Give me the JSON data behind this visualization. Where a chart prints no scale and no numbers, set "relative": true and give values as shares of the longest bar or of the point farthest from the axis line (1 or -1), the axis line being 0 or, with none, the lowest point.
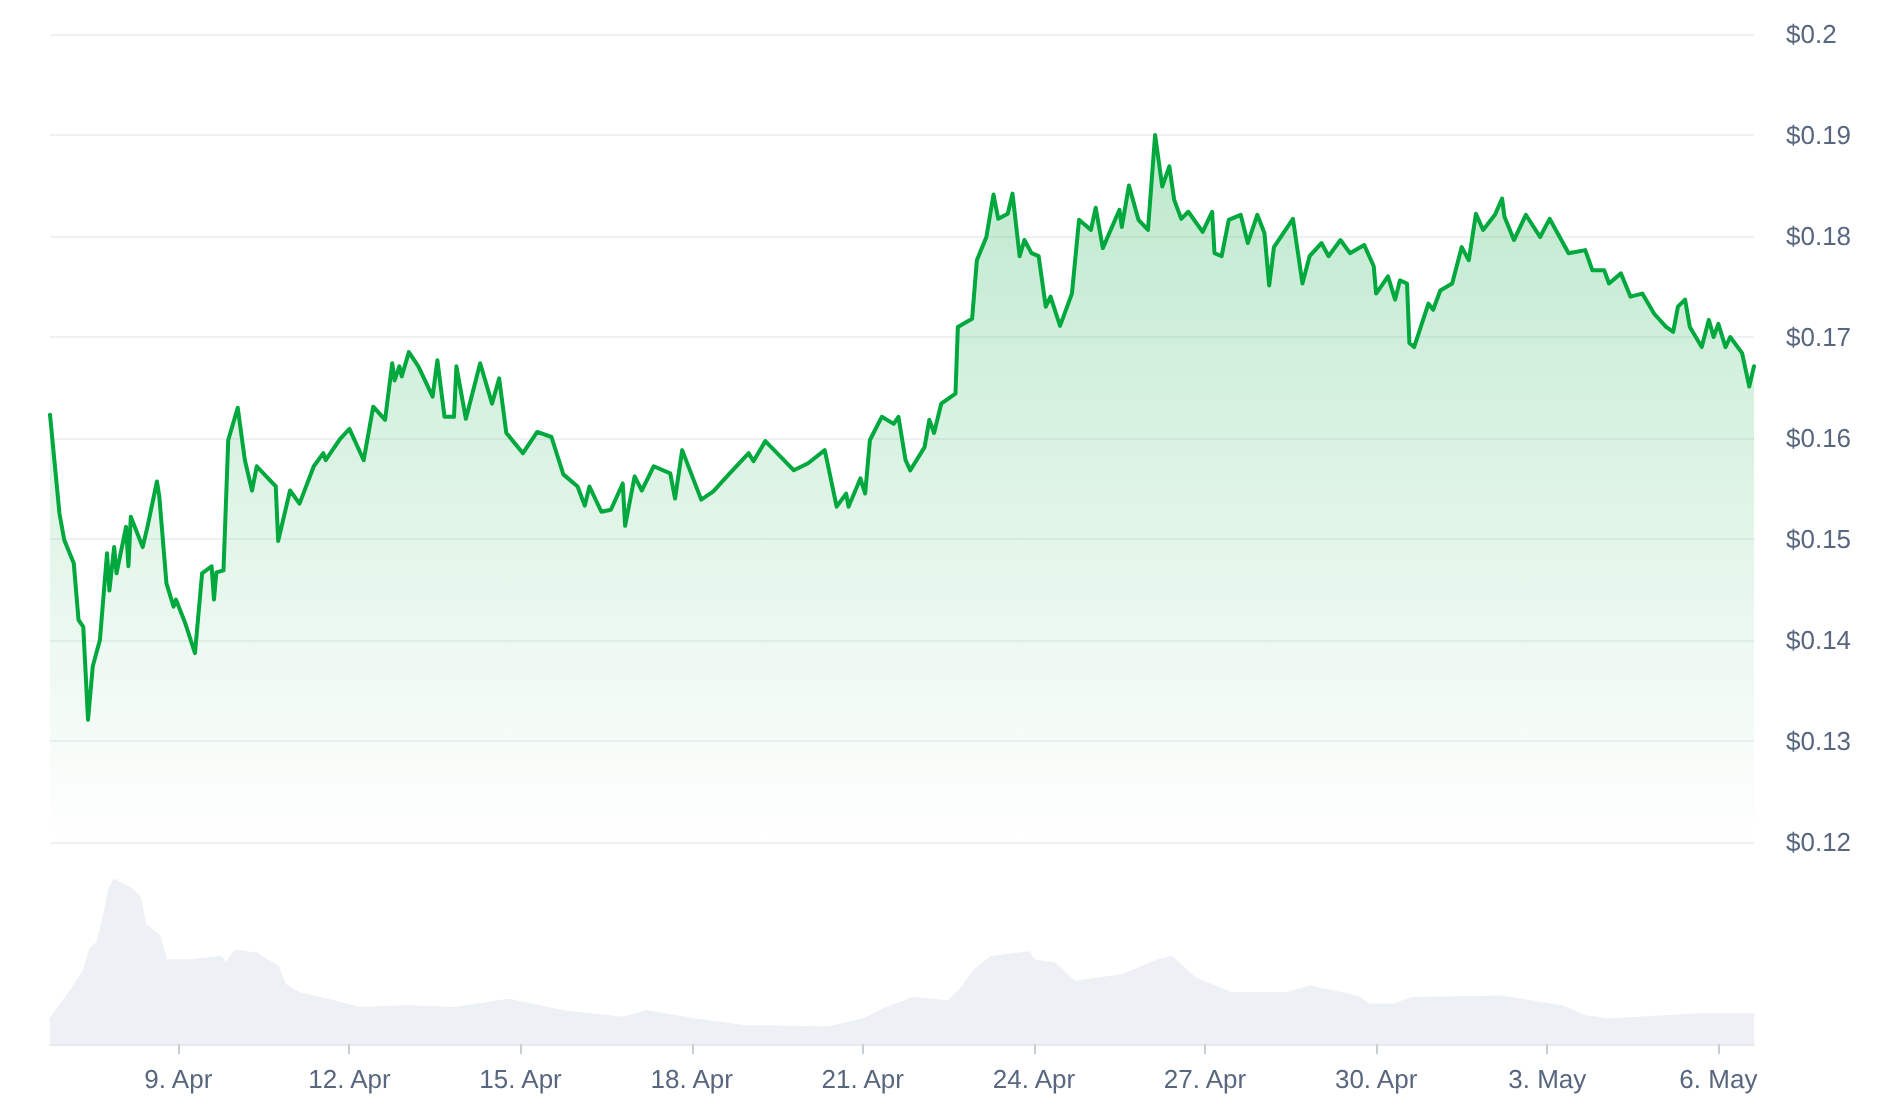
{
  "chart_data": [
    {
      "type": "area",
      "color": "#00a83e",
      "x": [
        "--04-06T18:00",
        "--04-06T22:00",
        "--04-07T00:00",
        "--04-07T04:00",
        "--04-07T06:00",
        "--04-07T08:00",
        "--04-07T10:00",
        "--04-07T12:00",
        "--04-07T15:00",
        "--04-07T18:00",
        "--04-07T19:00",
        "--04-07T21:00",
        "--04-07T22:00",
        "--04-08T02:00",
        "--04-08T03:00",
        "--04-08T04:00",
        "--04-08T09:00",
        "--04-08T11:00",
        "--04-08T15:00",
        "--04-08T16:00",
        "--04-08T19:00",
        "--04-08T22:00",
        "--04-08T23:00",
        "--04-09T03:00",
        "--04-09T07:00",
        "--04-09T10:00",
        "--04-09T14:00",
        "--04-09T15:00",
        "--04-09T16:00",
        "--04-09T19:00",
        "--04-09T21:00",
        "--04-10T01:00",
        "--04-10T04:00",
        "--04-10T07:00",
        "--04-10T09:00",
        "--04-10T17:00",
        "--04-10T18:00",
        "--04-10T23:00",
        "--04-11T03:00",
        "--04-11T09:00",
        "--04-11T13:00",
        "--04-11T14:00",
        "--04-11T20:00",
        "--04-12T00:00",
        "--04-12T06:00",
        "--04-12T10:00",
        "--04-12T15:00",
        "--04-12T18:00",
        "--04-12T19:00",
        "--04-12T21:00",
        "--04-12T22:00",
        "--04-13T01:00",
        "--04-13T05:00",
        "--04-13T11:00",
        "--04-13T13:00",
        "--04-13T16:00",
        "--04-13T20:00",
        "--04-13T21:00",
        "--04-14T01:00",
        "--04-14T07:00",
        "--04-14T12:00",
        "--04-14T15:00",
        "--04-14T18:00",
        "--04-15T01:00",
        "--04-15T07:00",
        "--04-15T13:00",
        "--04-15T18:00",
        "--04-16T00:00",
        "--04-16T03:00",
        "--04-16T05:00",
        "--04-16T10:00",
        "--04-16T14:00",
        "--04-16T19:00",
        "--04-16T20:00",
        "--04-17T00:00",
        "--04-17T03:00",
        "--04-17T08:00",
        "--04-17T15:00",
        "--04-17T17:00",
        "--04-17T20:00",
        "--04-18T04:00",
        "--04-18T09:00",
        "--04-18T16:00",
        "--04-19T00:00",
        "--04-19T02:00",
        "--04-19T07:00",
        "--04-19T14:00",
        "--04-19T19:00",
        "--04-20T01:00",
        "--04-20T08:00",
        "--04-20T13:00",
        "--04-20T17:00",
        "--04-20T18:00",
        "--04-20T23:00",
        "--04-21T01:00",
        "--04-21T03:00",
        "--04-21T08:00",
        "--04-21T13:00",
        "--04-21T15:00",
        "--04-21T18:00",
        "--04-21T20:00",
        "--04-22T02:00",
        "--04-22T04:00",
        "--04-22T06:00",
        "--04-22T09:00",
        "--04-22T15:00",
        "--04-22T16:00",
        "--04-22T22:00",
        "--04-23T00:00",
        "--04-23T04:00",
        "--04-23T07:00",
        "--04-23T09:00",
        "--04-23T13:00",
        "--04-23T15:00",
        "--04-23T18:00",
        "--04-23T20:00",
        "--04-23T23:00",
        "--04-24T02:00",
        "--04-24T05:00",
        "--04-24T07:00",
        "--04-24T11:00",
        "--04-24T16:00",
        "--04-24T19:00",
        "--04-25T00:00",
        "--04-25T02:00",
        "--04-25T05:00",
        "--04-25T12:00",
        "--04-25T13:00",
        "--04-25T16:00",
        "--04-25T20:00",
        "--04-26T00:00",
        "--04-26T03:00",
        "--04-26T06:00",
        "--04-26T09:00",
        "--04-26T11:00",
        "--04-26T14:00",
        "--04-26T17:00",
        "--04-26T23:00",
        "--04-27T03:00",
        "--04-27T04:00",
        "--04-27T07:00",
        "--04-27T10:00",
        "--04-27T15:00",
        "--04-27T18:00",
        "--04-27T22:00",
        "--04-28T01:00",
        "--04-28T03:00",
        "--04-28T05:00",
        "--04-28T13:00",
        "--04-28T17:00",
        "--04-28T20:00",
        "--04-29T01:00",
        "--04-29T04:00",
        "--04-29T09:00",
        "--04-29T13:00",
        "--04-29T19:00",
        "--04-29T23:00",
        "--04-30T00:00",
        "--04-30T05:00",
        "--04-30T08:00",
        "--04-30T10:00",
        "--04-30T13:00",
        "--04-30T14:00",
        "--04-30T16:00",
        "--04-30T22:00",
        "--05-01T00:00",
        "--05-01T03:00",
        "--05-01T08:00",
        "--05-01T12:00",
        "--05-01T15:00",
        "--05-01T18:00",
        "--05-01T21:00",
        "--05-02T02:00",
        "--05-02T05:00",
        "--05-02T06:00",
        "--05-02T10:00",
        "--05-02T15:00",
        "--05-02T21:00",
        "--05-03T01:00",
        "--05-03T09:00",
        "--05-03T16:00",
        "--05-03T19:00",
        "--05-04T00:00",
        "--05-04T02:00",
        "--05-04T07:00",
        "--05-04T11:00",
        "--05-04T16:00",
        "--05-04T21:00",
        "--05-05T02:00",
        "--05-05T05:00",
        "--05-05T07:00",
        "--05-05T10:00",
        "--05-05T12:00",
        "--05-05T17:00",
        "--05-05T20:00",
        "--05-05T22:00",
        "--05-06T00:00",
        "--05-06T03:00",
        "--05-06T05:00",
        "--05-06T10:00",
        "--05-06T13:00",
        "--05-06T15:00"
      ],
      "values": [
        0.1623,
        0.1525,
        0.1499,
        0.1476,
        0.142,
        0.1413,
        0.1321,
        0.1374,
        0.14,
        0.1486,
        0.1449,
        0.1492,
        0.1466,
        0.1512,
        0.1473,
        0.1522,
        0.1492,
        0.1512,
        0.1557,
        0.1542,
        0.1456,
        0.1433,
        0.144,
        0.1416,
        0.1387,
        0.1466,
        0.1473,
        0.144,
        0.1467,
        0.1469,
        0.1598,
        0.163,
        0.1578,
        0.1548,
        0.1572,
        0.1552,
        0.1498,
        0.1548,
        0.1535,
        0.1572,
        0.1585,
        0.1578,
        0.1599,
        0.1609,
        0.1578,
        0.1631,
        0.1618,
        0.1674,
        0.1657,
        0.1671,
        0.1661,
        0.1685,
        0.1671,
        0.1641,
        0.1677,
        0.1621,
        0.1621,
        0.1671,
        0.1619,
        0.1674,
        0.1634,
        0.1659,
        0.1605,
        0.1585,
        0.1606,
        0.1601,
        0.1564,
        0.1552,
        0.1533,
        0.1552,
        0.1527,
        0.1529,
        0.1555,
        0.1513,
        0.1562,
        0.1548,
        0.1572,
        0.1565,
        0.154,
        0.1588,
        0.1539,
        0.1547,
        0.1565,
        0.1585,
        0.1577,
        0.1597,
        0.158,
        0.1568,
        0.1575,
        0.1588,
        0.1532,
        0.1545,
        0.1532,
        0.156,
        0.1545,
        0.1598,
        0.1621,
        0.1614,
        0.1621,
        0.1578,
        0.1568,
        0.1591,
        0.1618,
        0.1605,
        0.1634,
        0.1644,
        0.171,
        0.1718,
        0.1776,
        0.1799,
        0.1841,
        0.1817,
        0.1822,
        0.1842,
        0.178,
        0.1796,
        0.1783,
        0.178,
        0.173,
        0.174,
        0.1711,
        0.1743,
        0.1816,
        0.1806,
        0.1828,
        0.1788,
        0.1826,
        0.1809,
        0.185,
        0.1816,
        0.1806,
        0.19,
        0.1849,
        0.1869,
        0.1836,
        0.1817,
        0.1824,
        0.1804,
        0.1824,
        0.1783,
        0.178,
        0.1816,
        0.1821,
        0.1793,
        0.1821,
        0.1803,
        0.1751,
        0.1789,
        0.1817,
        0.1753,
        0.178,
        0.1793,
        0.178,
        0.1796,
        0.1783,
        0.1791,
        0.177,
        0.1743,
        0.176,
        0.1737,
        0.1756,
        0.1753,
        0.1694,
        0.169,
        0.1733,
        0.1727,
        0.1746,
        0.1753,
        0.1789,
        0.1776,
        0.1822,
        0.1806,
        0.1821,
        0.1837,
        0.1819,
        0.1796,
        0.1821,
        0.1799,
        0.1817,
        0.1783,
        0.1786,
        0.1766,
        0.1766,
        0.1753,
        0.1763,
        0.174,
        0.1743,
        0.1723,
        0.171,
        0.1705,
        0.173,
        0.1737,
        0.171,
        0.169,
        0.1717,
        0.17,
        0.1713,
        0.169,
        0.17,
        0.1684,
        0.1651,
        0.1671
      ],
      "xlim": [
        "--04-06T18:00",
        "--05-06T15:00"
      ],
      "ylim": [
        0.12,
        0.2
      ],
      "yticks": [
        {
          "value": 0.12,
          "label": "$0.12"
        },
        {
          "value": 0.13,
          "label": "$0.13"
        },
        {
          "value": 0.14,
          "label": "$0.14"
        },
        {
          "value": 0.15,
          "label": "$0.15"
        },
        {
          "value": 0.16,
          "label": "$0.16"
        },
        {
          "value": 0.17,
          "label": "$0.17"
        },
        {
          "value": 0.18,
          "label": "$0.18"
        },
        {
          "value": 0.19,
          "label": "$0.19"
        },
        {
          "value": 0.2,
          "label": "$0.2"
        }
      ],
      "grid": "y",
      "tick_labels": "y"
    },
    {
      "type": "area",
      "relative": true,
      "color": "#edf0f4",
      "x": [
        "--04-06T18:00",
        "--04-07T03:00",
        "--04-07T08:00",
        "--04-07T11:00",
        "--04-07T14:00",
        "--04-07T17:00",
        "--04-07T19:00",
        "--04-07T21:00",
        "--04-08T04:00",
        "--04-08T08:00",
        "--04-08T10:00",
        "--04-08T16:00",
        "--04-08T19:00",
        "--04-09T05:00",
        "--04-09T18:00",
        "--04-09T20:00",
        "--04-10T00:00",
        "--04-10T09:00",
        "--04-10T18:00",
        "--04-10T21:00",
        "--04-11T03:00",
        "--04-11T18:00",
        "--04-12T04:00",
        "--04-13T00:00",
        "--04-13T20:00",
        "--04-14T19:00",
        "--04-15T18:00",
        "--04-16T19:00",
        "--04-17T05:00",
        "--04-18T02:00",
        "--04-18T22:00",
        "--04-20T09:00",
        "--04-21T00:00",
        "--04-21T10:00",
        "--04-21T21:00",
        "--04-22T12:00",
        "--04-22T17:00",
        "--04-22T23:00",
        "--04-23T06:00",
        "--04-23T22:00",
        "--04-24T00:00",
        "--04-24T09:00",
        "--04-24T17:00",
        "--04-25T13:00",
        "--04-26T04:00",
        "--04-26T10:00",
        "--04-26T20:00",
        "--04-27T11:00",
        "--04-28T10:00",
        "--04-28T20:00",
        "--04-29T16:00",
        "--04-29T21:00",
        "--04-30T07:00",
        "--04-30T15:00",
        "--05-02T05:00",
        "--05-03T06:00",
        "--05-03T16:00",
        "--05-04T02:00",
        "--05-05T14:00",
        "--05-06T15:00"
      ],
      "values": [
        0.15,
        0.33,
        0.44,
        0.58,
        0.62,
        0.8,
        0.95,
        1,
        0.95,
        0.89,
        0.73,
        0.66,
        0.51,
        0.51,
        0.53,
        0.49,
        0.57,
        0.55,
        0.47,
        0.36,
        0.31,
        0.26,
        0.22,
        0.23,
        0.22,
        0.27,
        0.2,
        0.16,
        0.2,
        0.15,
        0.11,
        0.1,
        0.15,
        0.22,
        0.28,
        0.26,
        0.33,
        0.45,
        0.53,
        0.56,
        0.51,
        0.49,
        0.38,
        0.42,
        0.51,
        0.53,
        0.4,
        0.31,
        0.31,
        0.35,
        0.29,
        0.24,
        0.24,
        0.28,
        0.29,
        0.23,
        0.17,
        0.15,
        0.18,
        0.18
      ],
      "xlim": [
        "--04-06T18:00",
        "--05-06T15:00"
      ],
      "xticks": [
        {
          "value": "--04-09",
          "label": "9. Apr"
        },
        {
          "value": "--04-12",
          "label": "12. Apr"
        },
        {
          "value": "--04-15",
          "label": "15. Apr"
        },
        {
          "value": "--04-18",
          "label": "18. Apr"
        },
        {
          "value": "--04-21",
          "label": "21. Apr"
        },
        {
          "value": "--04-24",
          "label": "24. Apr"
        },
        {
          "value": "--04-27",
          "label": "27. Apr"
        },
        {
          "value": "--04-30",
          "label": "30. Apr"
        },
        {
          "value": "--05-03",
          "label": "3. May"
        },
        {
          "value": "--05-06",
          "label": "6. May"
        }
      ],
      "tick_labels": "x"
    }
  ]
}
